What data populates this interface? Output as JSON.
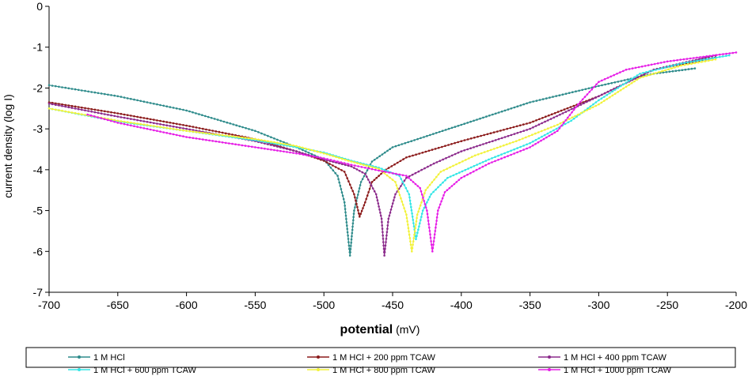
{
  "chart_data": {
    "type": "line",
    "title": "",
    "xlabel_bold": "potential",
    "xlabel_unit": " (mV)",
    "ylabel": "current density (log I)",
    "xlim": [
      -700,
      -200
    ],
    "ylim": [
      -7,
      0
    ],
    "xticks": [
      -700,
      -650,
      -600,
      -550,
      -500,
      -450,
      -400,
      -350,
      -300,
      -250,
      -200
    ],
    "yticks": [
      0,
      -1,
      -2,
      -3,
      -4,
      -5,
      -6,
      -7
    ],
    "grid": false,
    "legend_position": "bottom",
    "series": [
      {
        "name": "1 M HCl",
        "color": "#2e8b8b",
        "points": [
          [
            -700,
            -1.93
          ],
          [
            -650,
            -2.2
          ],
          [
            -600,
            -2.55
          ],
          [
            -550,
            -3.05
          ],
          [
            -520,
            -3.45
          ],
          [
            -500,
            -3.75
          ],
          [
            -490,
            -4.15
          ],
          [
            -485,
            -4.8
          ],
          [
            -481,
            -6.1
          ],
          [
            -478,
            -5.0
          ],
          [
            -473,
            -4.3
          ],
          [
            -465,
            -3.8
          ],
          [
            -450,
            -3.45
          ],
          [
            -400,
            -2.9
          ],
          [
            -350,
            -2.35
          ],
          [
            -300,
            -1.95
          ],
          [
            -260,
            -1.65
          ],
          [
            -230,
            -1.52
          ]
        ]
      },
      {
        "name": "1 M HCl + 200 ppm TCAW",
        "color": "#8b1a1a",
        "points": [
          [
            -700,
            -2.35
          ],
          [
            -650,
            -2.62
          ],
          [
            -600,
            -2.92
          ],
          [
            -550,
            -3.25
          ],
          [
            -520,
            -3.55
          ],
          [
            -500,
            -3.78
          ],
          [
            -485,
            -4.05
          ],
          [
            -478,
            -4.6
          ],
          [
            -474,
            -5.15
          ],
          [
            -470,
            -4.8
          ],
          [
            -465,
            -4.3
          ],
          [
            -455,
            -4.0
          ],
          [
            -440,
            -3.7
          ],
          [
            -400,
            -3.3
          ],
          [
            -350,
            -2.85
          ],
          [
            -300,
            -2.2
          ],
          [
            -260,
            -1.55
          ],
          [
            -215,
            -1.25
          ]
        ]
      },
      {
        "name": "1 M HCl + 400 ppm TCAW",
        "color": "#8b2a8b",
        "points": [
          [
            -700,
            -2.38
          ],
          [
            -650,
            -2.7
          ],
          [
            -600,
            -3.0
          ],
          [
            -550,
            -3.3
          ],
          [
            -520,
            -3.55
          ],
          [
            -500,
            -3.75
          ],
          [
            -480,
            -3.92
          ],
          [
            -470,
            -4.1
          ],
          [
            -462,
            -4.6
          ],
          [
            -458,
            -5.2
          ],
          [
            -456,
            -6.1
          ],
          [
            -453,
            -5.2
          ],
          [
            -448,
            -4.6
          ],
          [
            -440,
            -4.2
          ],
          [
            -420,
            -3.85
          ],
          [
            -400,
            -3.55
          ],
          [
            -350,
            -3.0
          ],
          [
            -300,
            -2.2
          ],
          [
            -260,
            -1.55
          ],
          [
            -215,
            -1.2
          ]
        ]
      },
      {
        "name": "1 M HCl + 600 ppm TCAW",
        "color": "#33e6e6",
        "points": [
          [
            -700,
            -2.5
          ],
          [
            -650,
            -2.82
          ],
          [
            -600,
            -3.05
          ],
          [
            -550,
            -3.28
          ],
          [
            -520,
            -3.45
          ],
          [
            -500,
            -3.58
          ],
          [
            -480,
            -3.78
          ],
          [
            -460,
            -3.95
          ],
          [
            -445,
            -4.15
          ],
          [
            -438,
            -4.6
          ],
          [
            -433,
            -5.7
          ],
          [
            -428,
            -5.0
          ],
          [
            -422,
            -4.6
          ],
          [
            -410,
            -4.2
          ],
          [
            -380,
            -3.75
          ],
          [
            -350,
            -3.35
          ],
          [
            -320,
            -2.8
          ],
          [
            -300,
            -2.3
          ],
          [
            -270,
            -1.65
          ],
          [
            -240,
            -1.4
          ],
          [
            -205,
            -1.2
          ]
        ]
      },
      {
        "name": "1 M HCl + 800 ppm TCAW",
        "color": "#f2f23a",
        "points": [
          [
            -700,
            -2.5
          ],
          [
            -650,
            -2.8
          ],
          [
            -600,
            -3.05
          ],
          [
            -550,
            -3.25
          ],
          [
            -520,
            -3.42
          ],
          [
            -500,
            -3.6
          ],
          [
            -480,
            -3.8
          ],
          [
            -460,
            -3.98
          ],
          [
            -448,
            -4.3
          ],
          [
            -440,
            -5.1
          ],
          [
            -436,
            -6.0
          ],
          [
            -432,
            -5.1
          ],
          [
            -426,
            -4.5
          ],
          [
            -415,
            -4.05
          ],
          [
            -390,
            -3.65
          ],
          [
            -360,
            -3.3
          ],
          [
            -330,
            -2.9
          ],
          [
            -300,
            -2.4
          ],
          [
            -270,
            -1.75
          ],
          [
            -240,
            -1.45
          ],
          [
            -215,
            -1.3
          ]
        ]
      },
      {
        "name": "1 M HCl + 1000 ppm TCAW",
        "color": "#e61ee6",
        "points": [
          [
            -672,
            -2.65
          ],
          [
            -650,
            -2.85
          ],
          [
            -600,
            -3.2
          ],
          [
            -550,
            -3.45
          ],
          [
            -520,
            -3.6
          ],
          [
            -500,
            -3.72
          ],
          [
            -480,
            -3.88
          ],
          [
            -460,
            -4.02
          ],
          [
            -440,
            -4.15
          ],
          [
            -430,
            -4.45
          ],
          [
            -425,
            -5.0
          ],
          [
            -421,
            -6.0
          ],
          [
            -417,
            -5.0
          ],
          [
            -412,
            -4.55
          ],
          [
            -400,
            -4.2
          ],
          [
            -380,
            -3.85
          ],
          [
            -350,
            -3.45
          ],
          [
            -330,
            -3.05
          ],
          [
            -315,
            -2.4
          ],
          [
            -300,
            -1.85
          ],
          [
            -280,
            -1.55
          ],
          [
            -250,
            -1.35
          ],
          [
            -200,
            -1.13
          ]
        ]
      }
    ]
  }
}
